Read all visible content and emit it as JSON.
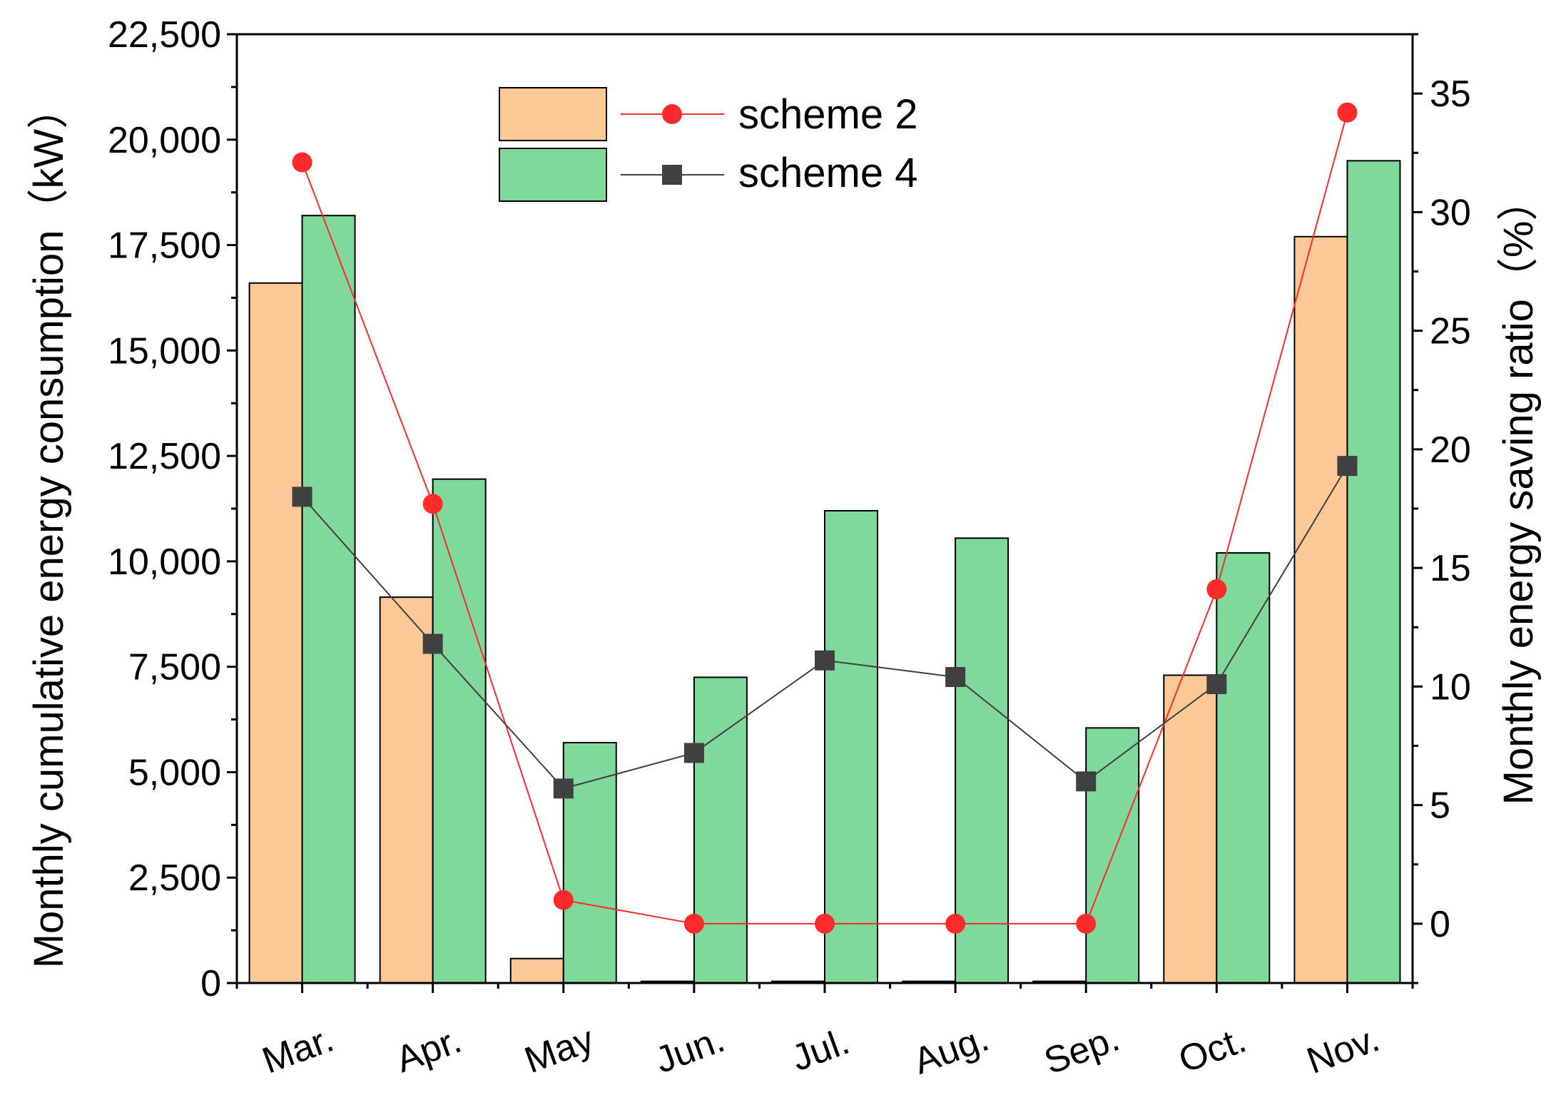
{
  "chart_data": {
    "type": "bar+line",
    "categories": [
      "Mar.",
      "Apr.",
      "May",
      "Jun.",
      "Jul.",
      "Aug.",
      "Sep.",
      "Oct.",
      "Nov."
    ],
    "bars": [
      {
        "name": "scheme 2",
        "color": "#FCC896",
        "values": [
          16600,
          9150,
          580,
          40,
          40,
          40,
          40,
          7300,
          17700
        ]
      },
      {
        "name": "scheme 4",
        "color": "#7FD99B",
        "values": [
          18200,
          11950,
          5700,
          7250,
          11200,
          10550,
          6050,
          10200,
          19500
        ]
      }
    ],
    "lines": [
      {
        "name": "scheme 2",
        "color": "#FF2A2A",
        "marker": "circle",
        "values": [
          32.1,
          17.7,
          1.0,
          0.0,
          0.0,
          0.0,
          0.0,
          14.1,
          34.2
        ]
      },
      {
        "name": "scheme 4",
        "color": "#404040",
        "marker": "square",
        "values": [
          18.0,
          11.8,
          5.7,
          7.2,
          11.1,
          10.4,
          6.0,
          10.1,
          19.3
        ]
      }
    ],
    "y_left": {
      "label": "Monthly cumulative energy consumption（kW）",
      "ylim": [
        0,
        22500
      ],
      "ticks": [
        "0",
        "2,500",
        "5,000",
        "7,500",
        "10,000",
        "12,500",
        "15,000",
        "17,500",
        "20,000",
        "22,500"
      ],
      "tick_values": [
        0,
        2500,
        5000,
        7500,
        10000,
        12500,
        15000,
        17500,
        20000,
        22500
      ]
    },
    "y_right": {
      "label": "Monthly energy saving ratio（%）",
      "ylim": [
        -2.5,
        37.5
      ],
      "ticks": [
        "0",
        "5",
        "10",
        "15",
        "20",
        "25",
        "30",
        "35"
      ],
      "tick_values": [
        0,
        5,
        10,
        15,
        20,
        25,
        30,
        35
      ]
    },
    "legend": {
      "position": "top-center",
      "entries": [
        "scheme 2",
        "scheme 4"
      ]
    }
  }
}
